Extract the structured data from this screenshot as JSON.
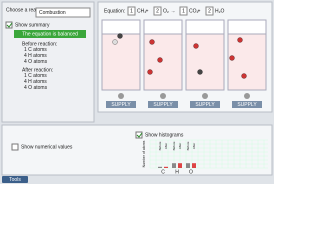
{
  "reaction": {
    "label": "Choose a reaction:",
    "selected": "Combustion"
  },
  "summary": {
    "checkbox": "Show summary",
    "status": "The equation is balanced",
    "before": {
      "heading": "Before reaction:",
      "atoms": [
        {
          "count": 1,
          "element": "C atoms"
        },
        {
          "count": 4,
          "element": "H atoms"
        },
        {
          "count": 4,
          "element": "O atoms"
        }
      ]
    },
    "after": {
      "heading": "After reaction:",
      "atoms": [
        {
          "count": 1,
          "element": "C atoms"
        },
        {
          "count": 4,
          "element": "H atoms"
        },
        {
          "count": 4,
          "element": "O atoms"
        }
      ]
    }
  },
  "equation": {
    "label": "Equation:",
    "plus": "+",
    "arrow": "→",
    "terms": [
      {
        "coefficient": 1,
        "formula": "CH₄"
      },
      {
        "coefficient": 2,
        "formula": "O₂"
      },
      {
        "coefficient": 1,
        "formula": "CO₂"
      },
      {
        "coefficient": 2,
        "formula": "H₂O"
      }
    ]
  },
  "supply": "SUPPLY",
  "histogram": {
    "checkbox": "Show histograms",
    "numeric_checkbox": "Show numerical values",
    "y_label": "Number of atoms",
    "groups": [
      "C",
      "H",
      "O"
    ],
    "series": [
      "Before",
      "After"
    ]
  },
  "tools": "Tools"
}
